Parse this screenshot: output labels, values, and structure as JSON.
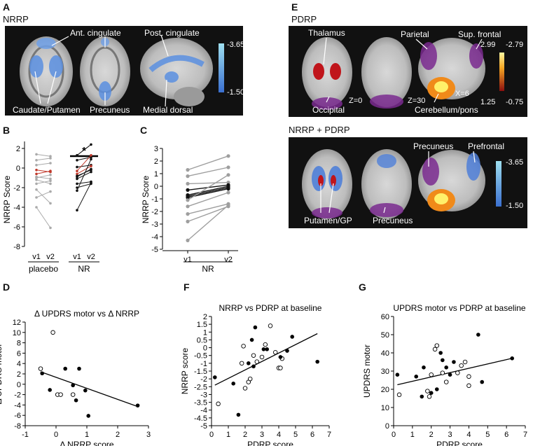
{
  "panels": {
    "A": {
      "letter": "A",
      "title": "NRRP",
      "labels": {
        "ant": "Ant. cingulate",
        "post": "Post. cingulate",
        "caudate": "Caudate/Putamen",
        "precuneus": "Precuneus",
        "medial": "Medial dorsal"
      },
      "scale": {
        "top": "-3.65",
        "bottom": "-1.50"
      }
    },
    "B": {
      "letter": "B",
      "ylabel": "NRRP Score",
      "yticks": [
        "2",
        "0",
        "-2",
        "-4",
        "-6",
        "-8"
      ],
      "xticks": [
        "v1",
        "v2",
        "v1",
        "v2"
      ],
      "groups": [
        "placebo",
        "NR"
      ],
      "star": "*",
      "placebo_pairs": [
        [
          1.4,
          1.2
        ],
        [
          0.8,
          1.0
        ],
        [
          0.3,
          0.5
        ],
        [
          -0.2,
          -0.4
        ],
        [
          -0.6,
          -0.3
        ],
        [
          -0.9,
          -1.1
        ],
        [
          -1.0,
          -0.7
        ],
        [
          -1.2,
          -1.6
        ],
        [
          -1.6,
          -1.3
        ],
        [
          -2.2,
          -3.6
        ],
        [
          -3.0,
          -2.4
        ],
        [
          -4.0,
          -6.1
        ]
      ],
      "nr_pairs": [
        [
          1.3,
          2.4
        ],
        [
          0.8,
          1.1
        ],
        [
          0.1,
          0.3
        ],
        [
          -0.3,
          1.3
        ],
        [
          -0.6,
          0.2
        ],
        [
          -0.8,
          -0.2
        ],
        [
          -0.9,
          -0.1
        ],
        [
          -1.1,
          -0.4
        ],
        [
          -1.6,
          -1.4
        ],
        [
          -2.0,
          -1.6
        ],
        [
          -2.3,
          0.9
        ],
        [
          -4.3,
          -1.5
        ]
      ],
      "red_indices": [
        3,
        4
      ]
    },
    "C": {
      "letter": "C",
      "ylabel": "NRRP Score",
      "yticks": [
        "3",
        "2",
        "1",
        "0",
        "-1",
        "-2",
        "-3",
        "-4",
        "-5"
      ],
      "xticks": [
        "v1",
        "v2"
      ],
      "group": "NR",
      "pairs": [
        [
          1.3,
          2.4
        ],
        [
          0.8,
          1.5
        ],
        [
          0.2,
          0.3
        ],
        [
          -0.3,
          0.1
        ],
        [
          -0.7,
          0.0
        ],
        [
          -0.8,
          -0.1
        ],
        [
          -0.9,
          -0.2
        ],
        [
          -1.1,
          0.9
        ],
        [
          -1.6,
          -0.5
        ],
        [
          -2.2,
          -1.4
        ],
        [
          -2.8,
          -1.6
        ],
        [
          -4.3,
          -1.5
        ]
      ],
      "dark_indices": [
        3,
        4,
        5,
        6
      ]
    },
    "D": {
      "letter": "D"
    },
    "E": {
      "letter": "E",
      "title1": "PDRP",
      "title2": "NRRP + PDRP",
      "labels": {
        "thalamus": "Thalamus",
        "parietal": "Parietal",
        "supfrontal": "Sup. frontal",
        "occipital": "Occipital",
        "z0": "Z=0",
        "z30": "Z=30",
        "x6": "X=6",
        "cereb": "Cerebellum/pons",
        "precuneus_top": "Precuneus",
        "prefrontal": "Prefrontal",
        "putamen": "Putamen/GP",
        "precuneus_bot": "Precuneus"
      },
      "scale_hot": {
        "tl": "2.99",
        "tr": "-2.79",
        "bl": "1.25",
        "br": "-0.75"
      },
      "scale_blue": {
        "top": "-3.65",
        "bottom": "-1.50"
      }
    },
    "F": {
      "letter": "F"
    },
    "G": {
      "letter": "G"
    }
  },
  "chart_data": [
    {
      "type": "scatter",
      "panel": "D",
      "title": "Δ UPDRS motor vs Δ NRRP",
      "xlabel": "Δ NRRP score",
      "ylabel": "Δ UPDRS motor",
      "xlim": [
        -1,
        3
      ],
      "ylim": [
        -8,
        12
      ],
      "xticks": [
        "-1",
        "0",
        "1",
        "2",
        "3"
      ],
      "yticks": [
        "12",
        "10",
        "8",
        "6",
        "4",
        "2",
        "0",
        "-2",
        "-4",
        "-6",
        "-8"
      ],
      "filled": [
        [
          -0.45,
          2.1
        ],
        [
          -0.2,
          -1.1
        ],
        [
          0.3,
          3.0
        ],
        [
          0.55,
          -0.2
        ],
        [
          0.75,
          3.0
        ],
        [
          0.65,
          -3.1
        ],
        [
          0.95,
          -1.2
        ],
        [
          1.05,
          -6.1
        ],
        [
          2.65,
          -4.1
        ]
      ],
      "open": [
        [
          -0.1,
          10.0
        ],
        [
          -0.5,
          3.0
        ],
        [
          0.05,
          -2.0
        ],
        [
          0.15,
          -2.0
        ],
        [
          0.55,
          -2.0
        ]
      ],
      "fit": [
        [
          -0.5,
          2.4
        ],
        [
          2.6,
          -4.2
        ]
      ]
    },
    {
      "type": "scatter",
      "panel": "F",
      "title": "NRRP vs  PDRP at baseline",
      "xlabel": "PDRP score",
      "ylabel": "NRRP score",
      "xlim": [
        0,
        7
      ],
      "ylim": [
        -5,
        2
      ],
      "xticks": [
        "0",
        "1",
        "2",
        "3",
        "4",
        "5",
        "6",
        "7"
      ],
      "yticks": [
        "2",
        "1.5",
        "1",
        "0.5",
        "0",
        "-0.5",
        "-1",
        "-1.5",
        "-2",
        "-2.5",
        "-3",
        "-3.5",
        "-4",
        "-4.5",
        "-5"
      ],
      "filled": [
        [
          0.2,
          -1.9
        ],
        [
          1.3,
          -2.3
        ],
        [
          1.6,
          -4.3
        ],
        [
          2.2,
          -1.0
        ],
        [
          2.4,
          0.5
        ],
        [
          2.5,
          -1.2
        ],
        [
          2.6,
          1.3
        ],
        [
          3.1,
          -0.1
        ],
        [
          3.3,
          -0.1
        ],
        [
          4.1,
          -0.6
        ],
        [
          4.5,
          -0.2
        ],
        [
          4.8,
          0.7
        ],
        [
          6.3,
          -0.9
        ]
      ],
      "open": [
        [
          0.4,
          -3.6
        ],
        [
          1.8,
          -1.0
        ],
        [
          1.9,
          0.1
        ],
        [
          2.0,
          -2.6
        ],
        [
          2.2,
          -2.2
        ],
        [
          2.5,
          -0.5
        ],
        [
          2.7,
          -0.9
        ],
        [
          3.0,
          -0.6
        ],
        [
          3.2,
          0.2
        ],
        [
          3.5,
          1.4
        ],
        [
          3.8,
          -0.3
        ],
        [
          4.0,
          -1.3
        ],
        [
          4.1,
          -1.3
        ],
        [
          4.2,
          -0.7
        ],
        [
          2.3,
          -2.0
        ]
      ],
      "fit": [
        [
          0.2,
          -2.4
        ],
        [
          6.3,
          0.9
        ]
      ]
    },
    {
      "type": "scatter",
      "panel": "G",
      "title": "UPDRS motor vs PDRP at baseline",
      "xlabel": "PDRP score",
      "ylabel": "UPDRS motor",
      "xlim": [
        0,
        7
      ],
      "ylim": [
        0,
        60
      ],
      "xticks": [
        "0",
        "1",
        "2",
        "3",
        "4",
        "5",
        "6",
        "7"
      ],
      "yticks": [
        "60",
        "50",
        "40",
        "30",
        "20",
        "10",
        "0"
      ],
      "filled": [
        [
          0.2,
          28
        ],
        [
          1.2,
          27
        ],
        [
          1.5,
          16
        ],
        [
          1.6,
          32
        ],
        [
          2.0,
          18
        ],
        [
          2.3,
          20
        ],
        [
          2.5,
          40
        ],
        [
          2.6,
          36
        ],
        [
          2.8,
          32
        ],
        [
          3.0,
          28
        ],
        [
          3.2,
          35
        ],
        [
          4.5,
          50
        ],
        [
          4.7,
          24
        ],
        [
          6.3,
          37
        ]
      ],
      "open": [
        [
          0.3,
          17
        ],
        [
          1.8,
          19
        ],
        [
          2.0,
          28
        ],
        [
          2.2,
          42
        ],
        [
          2.3,
          44
        ],
        [
          2.6,
          29
        ],
        [
          2.8,
          24
        ],
        [
          3.4,
          29
        ],
        [
          3.6,
          33
        ],
        [
          3.8,
          35
        ],
        [
          4.0,
          27
        ],
        [
          4.0,
          22
        ],
        [
          1.9,
          16
        ]
      ],
      "fit": [
        [
          0.2,
          22.5
        ],
        [
          6.3,
          37
        ]
      ]
    }
  ]
}
